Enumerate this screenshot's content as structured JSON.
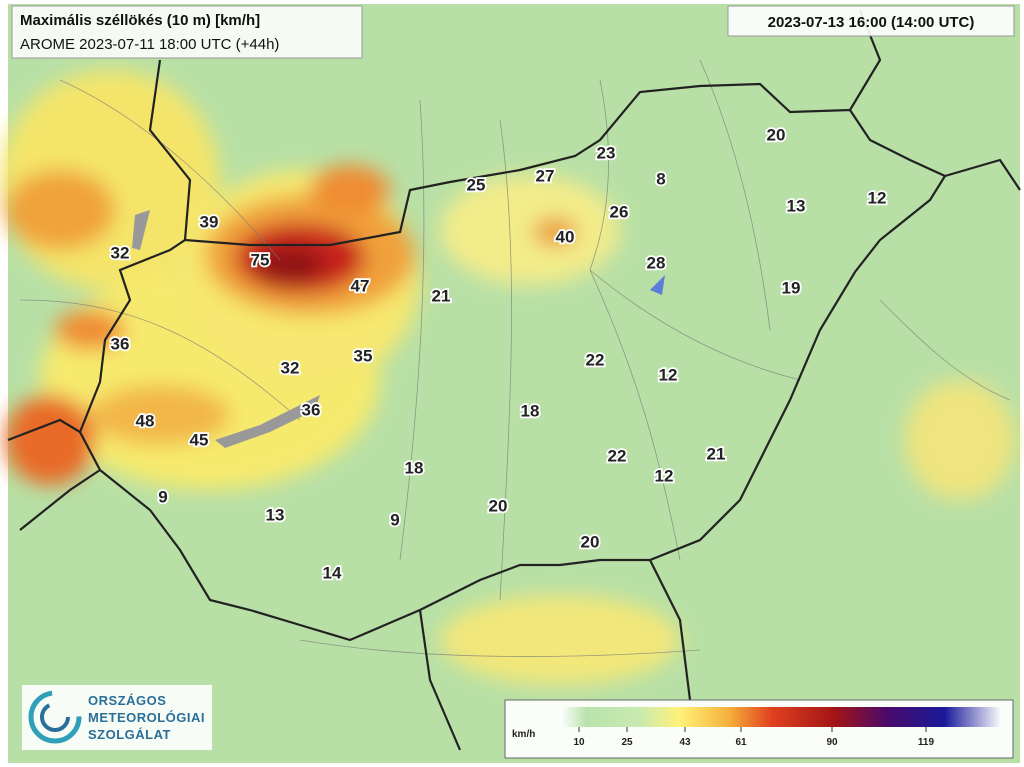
{
  "header": {
    "title": "Maximális széllökés (10 m) [km/h]",
    "subtitle": "AROME 2023-07-11 18:00 UTC (+44h)",
    "valid_time": "2023-07-13 16:00 (14:00 UTC)"
  },
  "stations": [
    32,
    39,
    75,
    47,
    21,
    25,
    27,
    23,
    8,
    26,
    40,
    28,
    20,
    13,
    12,
    19,
    36,
    35,
    32,
    36,
    48,
    45,
    22,
    12,
    18,
    22,
    12,
    21,
    18,
    9,
    13,
    9,
    20,
    20,
    14
  ],
  "legend": {
    "unit": "km/h",
    "ticks": [
      10,
      25,
      43,
      61,
      90,
      119
    ]
  },
  "logo": {
    "lines": [
      "ORSZÁGOS",
      "METEOROLÓGIAI",
      "SZOLGÁLAT"
    ]
  }
}
